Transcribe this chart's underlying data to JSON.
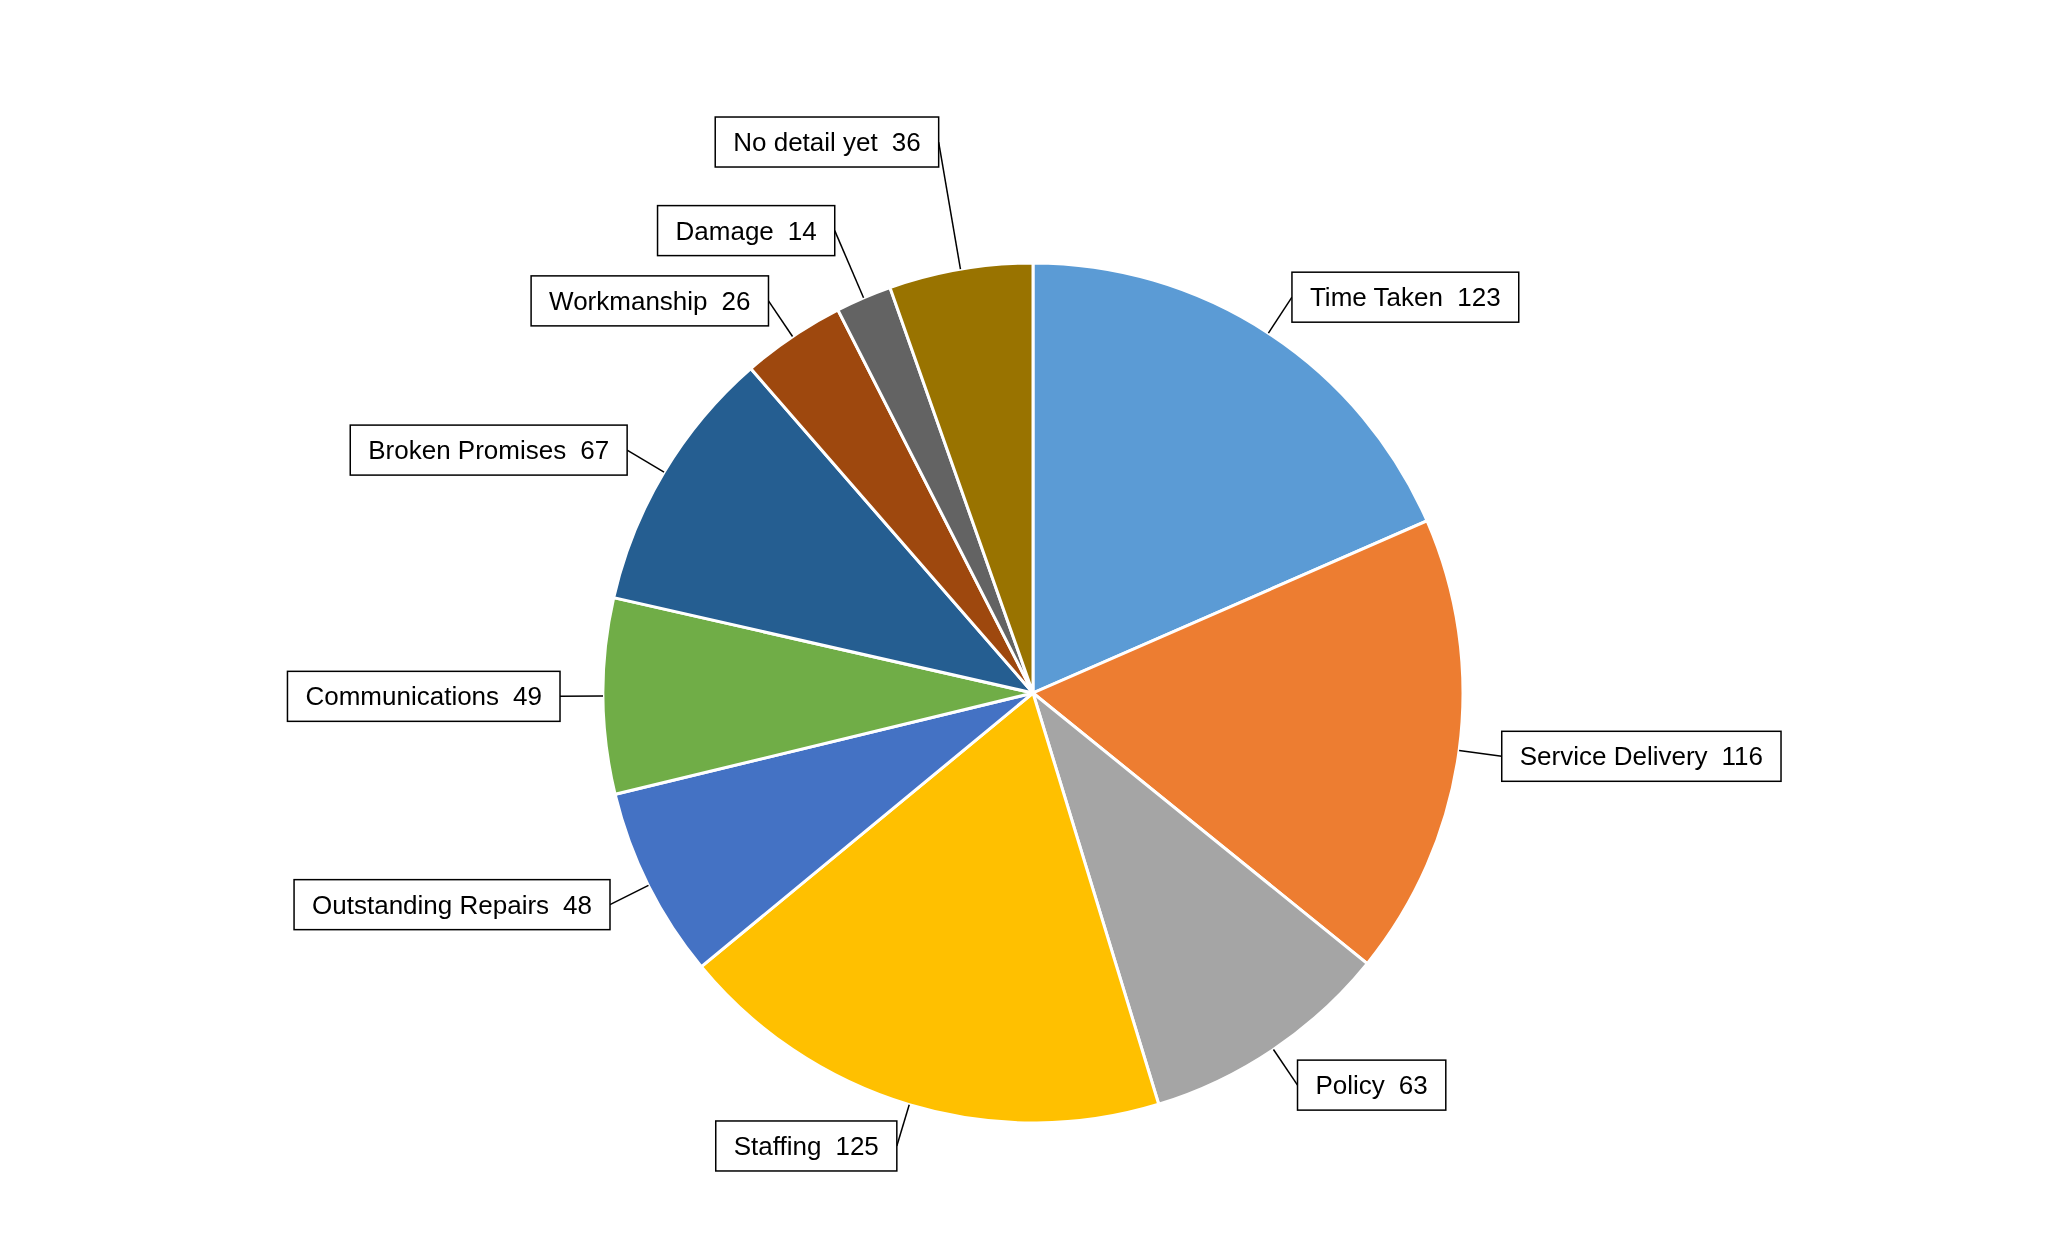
{
  "chart_data": {
    "type": "pie",
    "categories": [
      "Time Taken",
      "Service Delivery",
      "Policy",
      "Staffing",
      "Outstanding Repairs",
      "Communications",
      "Broken Promises",
      "Workmanship",
      "Damage",
      "No detail yet"
    ],
    "values": [
      123,
      116,
      63,
      125,
      48,
      49,
      67,
      26,
      14,
      36
    ],
    "colors": [
      "#5b9bd5",
      "#ed7d31",
      "#a5a5a5",
      "#ffc000",
      "#4472c4",
      "#70ad47",
      "#255e91",
      "#9e480e",
      "#636363",
      "#997300"
    ],
    "data_labels": true
  }
}
